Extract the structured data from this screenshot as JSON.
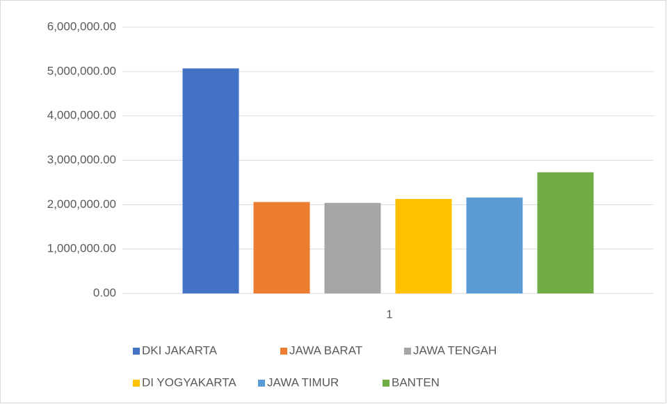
{
  "chart_data": {
    "type": "bar",
    "categories": [
      "1"
    ],
    "series": [
      {
        "name": "DKI JAKARTA",
        "color": "#4472c4",
        "values": [
          5070000
        ]
      },
      {
        "name": "JAWA BARAT",
        "color": "#ed7d31",
        "values": [
          2060000
        ]
      },
      {
        "name": "JAWA TENGAH",
        "color": "#a5a5a5",
        "values": [
          2040000
        ]
      },
      {
        "name": "DI YOGYAKARTA",
        "color": "#ffc000",
        "values": [
          2130000
        ]
      },
      {
        "name": "JAWA TIMUR",
        "color": "#5b9bd5",
        "values": [
          2160000
        ]
      },
      {
        "name": "BANTEN",
        "color": "#70ad47",
        "values": [
          2730000
        ]
      }
    ],
    "ylim": [
      0,
      6000000
    ],
    "yticks": [
      {
        "value": 0,
        "label": "0.00"
      },
      {
        "value": 1000000,
        "label": "1,000,000.00"
      },
      {
        "value": 2000000,
        "label": "2,000,000.00"
      },
      {
        "value": 3000000,
        "label": "3,000,000.00"
      },
      {
        "value": 4000000,
        "label": "4,000,000.00"
      },
      {
        "value": 5000000,
        "label": "5,000,000.00"
      },
      {
        "value": 6000000,
        "label": "6,000,000.00"
      }
    ],
    "grid": true,
    "legend": "bottom"
  }
}
